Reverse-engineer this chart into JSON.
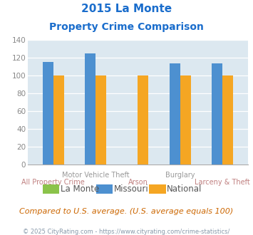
{
  "title_line1": "2015 La Monte",
  "title_line2": "Property Crime Comparison",
  "categories": [
    "All Property Crime",
    "Motor Vehicle Theft",
    "Arson",
    "Burglary",
    "Larceny & Theft"
  ],
  "series": {
    "La Monte": [
      0,
      0,
      0,
      0,
      0
    ],
    "Missouri": [
      115,
      125,
      0,
      114,
      114
    ],
    "National": [
      100,
      100,
      100,
      100,
      100
    ]
  },
  "colors": {
    "La Monte": "#8bc34a",
    "Missouri": "#4d90d0",
    "National": "#f5a623"
  },
  "ylim": [
    0,
    140
  ],
  "yticks": [
    0,
    20,
    40,
    60,
    80,
    100,
    120,
    140
  ],
  "background_color": "#dce8f0",
  "title_color": "#1a6dcc",
  "tick_color": "#888888",
  "note_text": "Compared to U.S. average. (U.S. average equals 100)",
  "note_color": "#cc6600",
  "footer_text": "© 2025 CityRating.com - https://www.cityrating.com/crime-statistics/",
  "footer_color": "#8899aa",
  "top_x_labels": [
    [
      "Motor Vehicle Theft",
      1
    ],
    [
      "Burglary",
      3
    ]
  ],
  "bottom_x_labels": [
    [
      "All Property Crime",
      0
    ],
    [
      "Arson",
      2
    ],
    [
      "Larceny & Theft",
      4
    ]
  ],
  "legend_items": [
    "La Monte",
    "Missouri",
    "National"
  ]
}
